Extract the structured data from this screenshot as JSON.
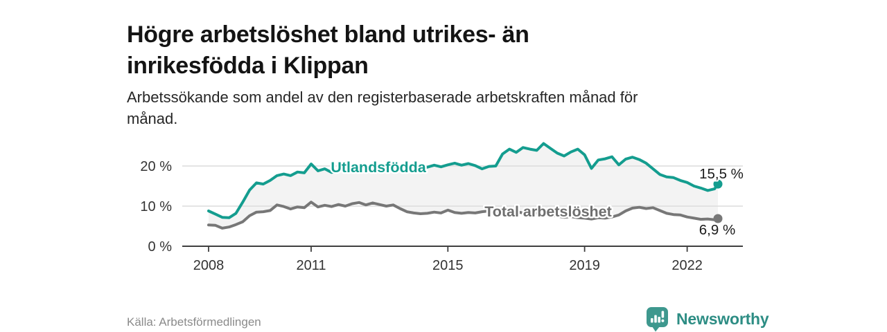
{
  "header": {
    "title_lines": [
      "Högre arbetslöshet bland utrikes- än",
      "inrikesfödda i Klippan"
    ],
    "subtitle_lines": [
      "Arbetssökande som andel av den registerbaserade arbetskraften månad för",
      "månad."
    ]
  },
  "chart_data": {
    "type": "line",
    "title": "Högre arbetslöshet bland utrikes- än inrikesfödda i Klippan",
    "xlabel": "",
    "ylabel": "",
    "unit": "%",
    "grid": true,
    "legend_position": "inline-on-line",
    "band_fill": "#f3f3f3",
    "grid_color": "#dcdcdc",
    "axis_color": "#3f3f3f",
    "tick_label_color": "#333333",
    "end_label_color": "#1a1a1a",
    "ylim": [
      0,
      29.5
    ],
    "xlim": [
      2007.2,
      2023.6
    ],
    "yticks": [
      {
        "label": "0 %",
        "value": 0
      },
      {
        "label": "10 %",
        "value": 10
      },
      {
        "label": "20 %",
        "value": 20
      }
    ],
    "xticks": [
      {
        "label": "2008",
        "value": 2008
      },
      {
        "label": "2011",
        "value": 2011
      },
      {
        "label": "2015",
        "value": 2015
      },
      {
        "label": "2019",
        "value": 2019
      },
      {
        "label": "2022",
        "value": 2022
      }
    ],
    "x": [
      2008.0,
      2008.2,
      2008.4,
      2008.6,
      2008.8,
      2009.0,
      2009.2,
      2009.4,
      2009.6,
      2009.8,
      2010.0,
      2010.2,
      2010.4,
      2010.6,
      2010.8,
      2011.0,
      2011.2,
      2011.4,
      2011.6,
      2011.8,
      2012.0,
      2012.2,
      2012.4,
      2012.6,
      2012.8,
      2013.0,
      2013.2,
      2013.4,
      2013.6,
      2013.8,
      2014.0,
      2014.2,
      2014.4,
      2014.6,
      2014.8,
      2015.0,
      2015.2,
      2015.4,
      2015.6,
      2015.8,
      2016.0,
      2016.2,
      2016.4,
      2016.6,
      2016.8,
      2017.0,
      2017.2,
      2017.4,
      2017.6,
      2017.8,
      2018.0,
      2018.2,
      2018.4,
      2018.6,
      2018.8,
      2019.0,
      2019.2,
      2019.4,
      2019.6,
      2019.8,
      2020.0,
      2020.2,
      2020.4,
      2020.6,
      2020.8,
      2021.0,
      2021.2,
      2021.4,
      2021.6,
      2021.8,
      2022.0,
      2022.2,
      2022.4,
      2022.6,
      2022.8,
      2022.9
    ],
    "series": [
      {
        "name": "Utlandsfödda",
        "color": "#149d8f",
        "label_color": "#149d8f",
        "end_label": "15,5 %",
        "end_value": 15.5,
        "values": [
          8.8,
          8.0,
          7.2,
          7.1,
          8.2,
          11.0,
          14.0,
          15.8,
          15.5,
          16.4,
          17.6,
          18.0,
          17.6,
          18.5,
          18.3,
          20.5,
          18.8,
          19.3,
          18.4,
          18.8,
          19.1,
          19.6,
          18.7,
          19.3,
          18.6,
          19.2,
          19.8,
          19.1,
          19.6,
          19.0,
          19.4,
          19.9,
          19.7,
          20.2,
          19.8,
          20.3,
          20.7,
          20.2,
          20.6,
          20.1,
          19.3,
          19.9,
          20.0,
          23.0,
          24.2,
          23.4,
          24.6,
          24.2,
          23.9,
          25.6,
          24.4,
          23.2,
          22.5,
          23.5,
          24.2,
          22.8,
          19.4,
          21.5,
          21.8,
          22.3,
          20.3,
          21.7,
          22.2,
          21.6,
          20.7,
          19.3,
          17.9,
          17.3,
          17.1,
          16.4,
          15.9,
          15.0,
          14.5,
          13.9,
          14.3,
          15.5
        ]
      },
      {
        "name": "Total arbetslöshet",
        "color": "#777777",
        "label_color": "#6e6e6e",
        "end_label": "6,9 %",
        "end_value": 6.9,
        "values": [
          5.3,
          5.2,
          4.5,
          4.8,
          5.4,
          6.1,
          7.6,
          8.5,
          8.6,
          8.9,
          10.3,
          9.9,
          9.3,
          9.8,
          9.6,
          11.0,
          9.8,
          10.2,
          9.9,
          10.4,
          10.0,
          10.6,
          10.9,
          10.3,
          10.8,
          10.4,
          10.0,
          10.3,
          9.4,
          8.6,
          8.3,
          8.1,
          8.2,
          8.5,
          8.3,
          9.0,
          8.4,
          8.2,
          8.4,
          8.3,
          8.6,
          8.8,
          8.5,
          8.7,
          8.4,
          8.6,
          8.3,
          8.1,
          8.3,
          8.0,
          7.8,
          7.5,
          7.2,
          7.4,
          7.1,
          7.0,
          6.8,
          7.1,
          7.0,
          7.3,
          7.8,
          8.8,
          9.5,
          9.7,
          9.4,
          9.6,
          8.9,
          8.2,
          7.9,
          7.8,
          7.3,
          7.0,
          6.7,
          6.8,
          6.6,
          6.9
        ]
      }
    ]
  },
  "footer": {
    "source": "Källa: Arbetsförmedlingen",
    "brand": "Newsworthy",
    "brand_color": "#2d8d84",
    "logo_color": "#3e988e"
  }
}
